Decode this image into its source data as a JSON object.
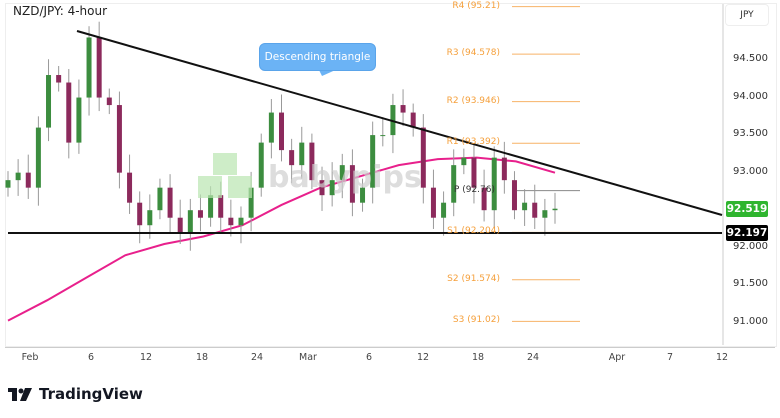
{
  "title": "NZD/JPY: 4-hour",
  "currency": "JPY",
  "annotation": "Descending triangle",
  "watermark": "babypips",
  "brand": "TradingView",
  "colors": {
    "up": "#3c8d3f",
    "down": "#8c2a5c",
    "ma": "#e8208c",
    "pivot": "#f7b267",
    "last_price": "#2fb52f",
    "support": "#000000"
  },
  "chart_data": {
    "type": "candlestick",
    "title": "NZD/JPY: 4-hour",
    "x_ticks": [
      "Feb",
      "6",
      "12",
      "18",
      "24",
      "Mar",
      "6",
      "12",
      "18",
      "24",
      "Apr",
      "7",
      "12"
    ],
    "y_ticks": [
      "94.500",
      "94.000",
      "93.500",
      "93.000",
      "92.000",
      "91.500",
      "91.000"
    ],
    "ylim": [
      90.7,
      95.3
    ],
    "closes": [
      92.9,
      93.0,
      92.8,
      93.6,
      94.3,
      94.2,
      93.4,
      94.0,
      94.8,
      94.0,
      93.9,
      93.0,
      92.6,
      92.3,
      92.5,
      92.8,
      92.4,
      92.2,
      92.5,
      92.4,
      92.7,
      92.4,
      92.3,
      92.4,
      92.8,
      93.4,
      93.8,
      93.3,
      93.1,
      93.4,
      92.9,
      92.7,
      92.9,
      93.1,
      92.6,
      92.8,
      93.5,
      93.5,
      93.9,
      93.8,
      93.6,
      92.8,
      92.4,
      92.6,
      93.1,
      93.2,
      92.8,
      92.5,
      93.2,
      92.9,
      92.5,
      92.6,
      92.4,
      92.5,
      92.52
    ],
    "moving_average": [
      91.03,
      91.3,
      91.6,
      91.9,
      92.05,
      92.15,
      92.3,
      92.57,
      92.8,
      92.95,
      93.1,
      93.18,
      93.2,
      93.15,
      93.0
    ],
    "trendline": {
      "start": 94.886,
      "end": 92.436
    },
    "support": {
      "value": 92.197,
      "label": "92.197"
    },
    "last_price": {
      "value": 92.519,
      "label": "92.519"
    },
    "pivots": [
      {
        "label": "R4 (95.21)",
        "value": 95.21
      },
      {
        "label": "R3 (94.578)",
        "value": 94.578
      },
      {
        "label": "R2 (93.946)",
        "value": 93.946
      },
      {
        "label": "R1 (93.392)",
        "value": 93.392
      },
      {
        "label": "P (92.76)",
        "value": 92.76
      },
      {
        "label": "S1 (92.204)",
        "value": 92.204
      },
      {
        "label": "S2 (91.574)",
        "value": 91.574
      },
      {
        "label": "S3 (91.02)",
        "value": 91.02
      }
    ]
  }
}
